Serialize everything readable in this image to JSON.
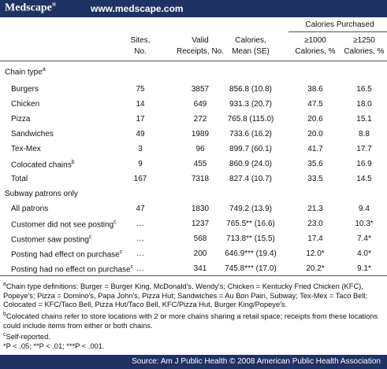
{
  "header": {
    "logo": "Medscape",
    "logo_mark": "®",
    "url": "www.medscape.com"
  },
  "table": {
    "group_header": "Calories Purchased",
    "columns": [
      [
        "Sites,",
        "No."
      ],
      [
        "Valid",
        "Receipts, No."
      ],
      [
        "Calories,",
        "Mean (SE)"
      ],
      [
        "≥1000",
        "Calories, %"
      ],
      [
        "≥1250",
        "Calories, %"
      ]
    ],
    "sections": [
      {
        "title": "Chain type",
        "note": "a",
        "rows": [
          {
            "label": "Burgers",
            "cells": [
              "75",
              "3857",
              "856.8 (10.8)",
              "38.6",
              "16.5"
            ]
          },
          {
            "label": "Chicken",
            "cells": [
              "14",
              "649",
              "931.3 (20.7)",
              "47.5",
              "18.0"
            ]
          },
          {
            "label": "Pizza",
            "cells": [
              "17",
              "272",
              "765.8 (115.0)",
              "20.6",
              "15.1"
            ]
          },
          {
            "label": "Sandwiches",
            "cells": [
              "49",
              "1989",
              "733.6 (16.2)",
              "20.0",
              "8.8"
            ]
          },
          {
            "label": "Tex-Mex",
            "cells": [
              "3",
              "96",
              "899.7 (60.1)",
              "41.7",
              "17.7"
            ]
          },
          {
            "label": "Colocated chains",
            "note": "b",
            "cells": [
              "9",
              "455",
              "860.9 (24.0)",
              "35.6",
              "16.9"
            ]
          },
          {
            "label": "Total",
            "cells": [
              "167",
              "7318",
              "827.4 (10.7)",
              "33.5",
              "14.5"
            ]
          }
        ]
      },
      {
        "title": "Subway patrons only",
        "rows": [
          {
            "label": "All patrons",
            "cells": [
              "47",
              "1830",
              "749.2 (13.9)",
              "21.3",
              "9.4"
            ]
          },
          {
            "label": "Customer did not see posting",
            "note": "c",
            "cells": [
              "…",
              "1237",
              "765.5** (16.6)",
              "23.0",
              "10.3*"
            ]
          },
          {
            "label": "Customer saw posting",
            "note": "c",
            "cells": [
              "…",
              "568",
              "713.8** (15.5)",
              "17.4",
              "7.4*"
            ]
          },
          {
            "label": "Posting had effect on purchase",
            "note": "c",
            "cells": [
              "…",
              "200",
              "646.9*** (19.4)",
              "12.0*",
              "4.0*"
            ]
          },
          {
            "label": "Posting had no effect on purchase",
            "note": "c",
            "cells": [
              "…",
              "341",
              "745.8*** (17.0)",
              "20.2*",
              "9.1*"
            ]
          }
        ]
      }
    ]
  },
  "footnotes": [
    {
      "mark": "a",
      "text": "Chain type definitions: Burger = Burger King, McDonald's, Wendy's; Chicken = Kentucky Fried Chicken (KFC), Popeye's; Pizza = Domino's, Papa John's, Pizza Hut; Sandwiches = Au Bon Pain, Subway; Tex-Mex = Taco Bell; Colocated = KFC/Taco Bell, Pizza Hut/Taco Bell, KFC/Pizza Hut, Burger King/Popeye's."
    },
    {
      "mark": "b",
      "text": "Colocated chains refer to store locations with 2 or more chains sharing a retail space; receipts from these locations could include items from either or both chains."
    },
    {
      "mark": "c",
      "text": "Self-reported."
    },
    {
      "text": "*P < .05; **P < .01; ***P < .001."
    }
  ],
  "footer": {
    "source": "Source: Am J Public Health © 2008 American Public Health Association"
  }
}
